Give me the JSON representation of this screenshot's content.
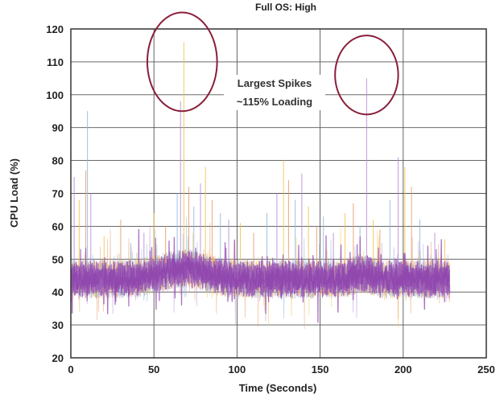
{
  "chart_data": {
    "type": "line",
    "title": "Full OS: High",
    "xlabel": "Time (Seconds)",
    "ylabel": "CPU Load (%)",
    "xlim": [
      0,
      250
    ],
    "ylim": [
      20,
      120
    ],
    "x_ticks": [
      "0",
      "50",
      "100",
      "150",
      "200",
      "250"
    ],
    "y_ticks": [
      "20",
      "30",
      "40",
      "50",
      "60",
      "70",
      "80",
      "90",
      "100",
      "110",
      "120"
    ],
    "grid": true,
    "data_end_x": 228,
    "baseline_mean": 44,
    "baseline_spread": [
      37,
      50
    ],
    "series_colors": [
      "#b58ad6",
      "#f0c24a",
      "#e89a6a",
      "#8fb7d9"
    ],
    "foreground_color": "#9b59b6",
    "spikes": [
      {
        "x": 2,
        "y": 75
      },
      {
        "x": 5,
        "y": 68
      },
      {
        "x": 9,
        "y": 77
      },
      {
        "x": 10,
        "y": 95
      },
      {
        "x": 12,
        "y": 70
      },
      {
        "x": 20,
        "y": 57
      },
      {
        "x": 30,
        "y": 62
      },
      {
        "x": 36,
        "y": 55
      },
      {
        "x": 44,
        "y": 58
      },
      {
        "x": 50,
        "y": 64
      },
      {
        "x": 57,
        "y": 60
      },
      {
        "x": 64,
        "y": 70
      },
      {
        "x": 66,
        "y": 98
      },
      {
        "x": 68,
        "y": 116
      },
      {
        "x": 71,
        "y": 72
      },
      {
        "x": 74,
        "y": 66
      },
      {
        "x": 78,
        "y": 73
      },
      {
        "x": 81,
        "y": 78
      },
      {
        "x": 85,
        "y": 68
      },
      {
        "x": 90,
        "y": 64
      },
      {
        "x": 95,
        "y": 62
      },
      {
        "x": 102,
        "y": 61
      },
      {
        "x": 110,
        "y": 58
      },
      {
        "x": 118,
        "y": 64
      },
      {
        "x": 124,
        "y": 70
      },
      {
        "x": 128,
        "y": 80
      },
      {
        "x": 131,
        "y": 74
      },
      {
        "x": 135,
        "y": 68
      },
      {
        "x": 139,
        "y": 76
      },
      {
        "x": 143,
        "y": 66
      },
      {
        "x": 148,
        "y": 60
      },
      {
        "x": 152,
        "y": 63
      },
      {
        "x": 158,
        "y": 58
      },
      {
        "x": 165,
        "y": 64
      },
      {
        "x": 170,
        "y": 67
      },
      {
        "x": 174,
        "y": 60
      },
      {
        "x": 178,
        "y": 105
      },
      {
        "x": 182,
        "y": 62
      },
      {
        "x": 186,
        "y": 59
      },
      {
        "x": 192,
        "y": 68
      },
      {
        "x": 197,
        "y": 81
      },
      {
        "x": 201,
        "y": 78
      },
      {
        "x": 205,
        "y": 72
      },
      {
        "x": 210,
        "y": 62
      },
      {
        "x": 219,
        "y": 58
      },
      {
        "x": 225,
        "y": 56
      }
    ],
    "annotations": [
      {
        "text_lines": [
          "Largest Spikes",
          "~115% Loading"
        ]
      },
      {
        "type": "ellipse",
        "cx": 67,
        "cy": 110,
        "rx": 21,
        "ry": 15,
        "color": "#8a1f3a"
      },
      {
        "type": "ellipse",
        "cx": 178,
        "cy": 106,
        "rx": 19,
        "ry": 12,
        "color": "#8a1f3a"
      }
    ]
  }
}
